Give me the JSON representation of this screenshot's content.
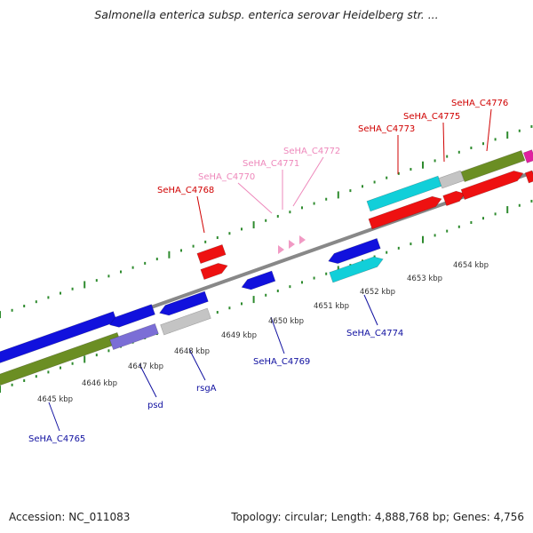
{
  "title": "Salmonella enterica subsp. enterica serovar Heidelberg str. ...",
  "footer": {
    "accession": "Accession: NC_011083",
    "topology": "Topology: circular; Length: 4,888,768 bp; Genes: 4,756"
  },
  "colors": {
    "backbone": "#888888",
    "ruler_ticks": "#2e8b2e",
    "red_gene": "#ee1111",
    "pink_gene": "#f19ac4",
    "blue_gene": "#1111dd",
    "cyan_gene": "#11cfd9",
    "purple_gene": "#7b6ed6",
    "olive_gene": "#6b8e23",
    "gray_gene": "#c4c4c4",
    "magenta_gene": "#e020a0",
    "label_red": "#d00000",
    "label_pink": "#ee88bb",
    "label_blue": "#1010a0"
  },
  "kbp_labels": [
    "4645 kbp",
    "4646 kbp",
    "4647 kbp",
    "4648 kbp",
    "4649 kbp",
    "4650 kbp",
    "4651 kbp",
    "4652 kbp",
    "4653 kbp",
    "4654 kbp"
  ],
  "gene_labels": [
    {
      "text": "SeHA_C4768",
      "color": "red"
    },
    {
      "text": "SeHA_C4770",
      "color": "pink"
    },
    {
      "text": "SeHA_C4771",
      "color": "pink"
    },
    {
      "text": "SeHA_C4772",
      "color": "pink"
    },
    {
      "text": "SeHA_C4773",
      "color": "red"
    },
    {
      "text": "SeHA_C4775",
      "color": "red"
    },
    {
      "text": "SeHA_C4776",
      "color": "red"
    },
    {
      "text": "SeHA_C4765",
      "color": "blue"
    },
    {
      "text": "psd",
      "color": "blue"
    },
    {
      "text": "rsgA",
      "color": "blue"
    },
    {
      "text": "SeHA_C4769",
      "color": "blue"
    },
    {
      "text": "SeHA_C4774",
      "color": "blue"
    }
  ]
}
